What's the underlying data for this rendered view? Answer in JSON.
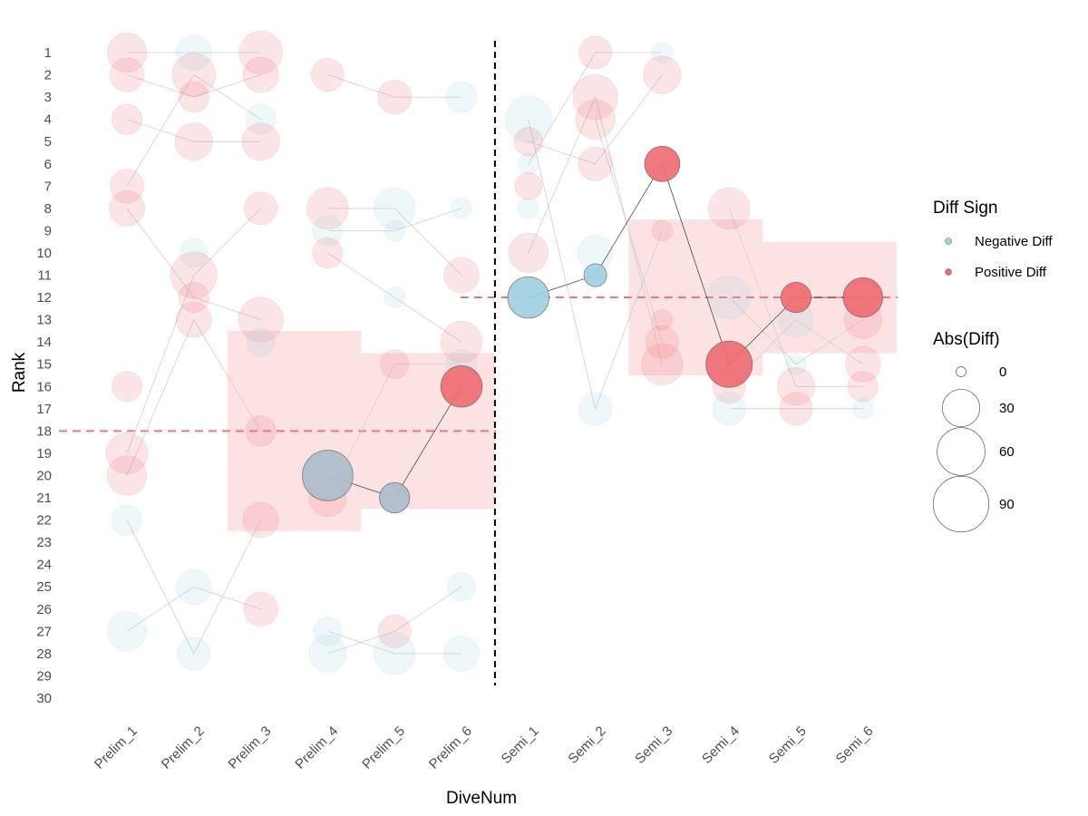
{
  "chart_data": {
    "type": "scatter",
    "xlabel": "DiveNum",
    "ylabel": "Rank",
    "categories": [
      "Prelim_1",
      "Prelim_2",
      "Prelim_3",
      "Prelim_4",
      "Prelim_5",
      "Prelim_6",
      "Semi_1",
      "Semi_2",
      "Semi_3",
      "Semi_4",
      "Semi_5",
      "Semi_6"
    ],
    "ylim": [
      30,
      1
    ],
    "y_ticks": [
      1,
      2,
      3,
      4,
      5,
      6,
      7,
      8,
      9,
      10,
      11,
      12,
      13,
      14,
      15,
      16,
      17,
      18,
      19,
      20,
      21,
      22,
      23,
      24,
      25,
      26,
      27,
      28,
      29,
      30
    ],
    "y_reversed": true,
    "grid": false,
    "colors": {
      "negative": "#9fd0df",
      "positive": "#ee6e73",
      "band": "#fde2e4",
      "reference_line": "#e07b7b",
      "divider": "#000000"
    },
    "stage_divider_after": "Prelim_6",
    "reference_lines": [
      {
        "from": "Prelim_1",
        "to": "Prelim_6",
        "rank": 18
      },
      {
        "from": "Semi_1",
        "to": "Semi_6",
        "rank": 12
      }
    ],
    "bands": [
      {
        "category": "Prelim_3",
        "ymin": 13.5,
        "ymax": 22.5
      },
      {
        "category": "Prelim_4",
        "ymin": 13.5,
        "ymax": 22.5
      },
      {
        "category": "Prelim_5",
        "ymin": 14.5,
        "ymax": 21.5
      },
      {
        "category": "Prelim_6",
        "ymin": 14.5,
        "ymax": 21.5
      },
      {
        "category": "Semi_3",
        "ymin": 8.5,
        "ymax": 15.5
      },
      {
        "category": "Semi_4",
        "ymin": 8.5,
        "ymax": 15.5
      },
      {
        "category": "Semi_5",
        "ymin": 9.5,
        "ymax": 14.5
      },
      {
        "category": "Semi_6",
        "ymin": 9.5,
        "ymax": 14.5
      }
    ],
    "highlight_path": {
      "prelim": [
        {
          "x": "Prelim_4",
          "rank": 20,
          "sign": "negative",
          "abs_diff": 70
        },
        {
          "x": "Prelim_5",
          "rank": 21,
          "sign": "negative",
          "abs_diff": 15
        },
        {
          "x": "Prelim_6",
          "rank": 16,
          "sign": "positive",
          "abs_diff": 40
        }
      ],
      "semi": [
        {
          "x": "Semi_1",
          "rank": 12,
          "sign": "negative",
          "abs_diff": 40
        },
        {
          "x": "Semi_2",
          "rank": 11,
          "sign": "negative",
          "abs_diff": 5
        },
        {
          "x": "Semi_3",
          "rank": 6,
          "sign": "positive",
          "abs_diff": 25
        },
        {
          "x": "Semi_4",
          "rank": 15,
          "sign": "positive",
          "abs_diff": 55
        },
        {
          "x": "Semi_5",
          "rank": 12,
          "sign": "positive",
          "abs_diff": 15
        },
        {
          "x": "Semi_6",
          "rank": 12,
          "sign": "positive",
          "abs_diff": 35
        }
      ]
    },
    "background_points": [
      {
        "x": "Prelim_1",
        "rank": 1,
        "sign": "positive",
        "abs_diff": 35
      },
      {
        "x": "Prelim_1",
        "rank": 2,
        "sign": "positive",
        "abs_diff": 22
      },
      {
        "x": "Prelim_1",
        "rank": 4,
        "sign": "positive",
        "abs_diff": 15
      },
      {
        "x": "Prelim_1",
        "rank": 7,
        "sign": "positive",
        "abs_diff": 22
      },
      {
        "x": "Prelim_1",
        "rank": 8,
        "sign": "positive",
        "abs_diff": 25
      },
      {
        "x": "Prelim_1",
        "rank": 16,
        "sign": "positive",
        "abs_diff": 15
      },
      {
        "x": "Prelim_1",
        "rank": 19,
        "sign": "positive",
        "abs_diff": 40
      },
      {
        "x": "Prelim_1",
        "rank": 20,
        "sign": "positive",
        "abs_diff": 35
      },
      {
        "x": "Prelim_1",
        "rank": 22,
        "sign": "negative",
        "abs_diff": 15
      },
      {
        "x": "Prelim_1",
        "rank": 27,
        "sign": "negative",
        "abs_diff": 35
      },
      {
        "x": "Prelim_2",
        "rank": 1,
        "sign": "negative",
        "abs_diff": 25
      },
      {
        "x": "Prelim_2",
        "rank": 2,
        "sign": "positive",
        "abs_diff": 45
      },
      {
        "x": "Prelim_2",
        "rank": 3,
        "sign": "positive",
        "abs_diff": 15
      },
      {
        "x": "Prelim_2",
        "rank": 5,
        "sign": "positive",
        "abs_diff": 30
      },
      {
        "x": "Prelim_2",
        "rank": 10,
        "sign": "negative",
        "abs_diff": 12
      },
      {
        "x": "Prelim_2",
        "rank": 11,
        "sign": "positive",
        "abs_diff": 55
      },
      {
        "x": "Prelim_2",
        "rank": 12,
        "sign": "positive",
        "abs_diff": 15
      },
      {
        "x": "Prelim_2",
        "rank": 13,
        "sign": "positive",
        "abs_diff": 25
      },
      {
        "x": "Prelim_2",
        "rank": 25,
        "sign": "negative",
        "abs_diff": 25
      },
      {
        "x": "Prelim_2",
        "rank": 28,
        "sign": "negative",
        "abs_diff": 20
      },
      {
        "x": "Prelim_3",
        "rank": 1,
        "sign": "positive",
        "abs_diff": 45
      },
      {
        "x": "Prelim_3",
        "rank": 2,
        "sign": "positive",
        "abs_diff": 25
      },
      {
        "x": "Prelim_3",
        "rank": 4,
        "sign": "negative",
        "abs_diff": 15
      },
      {
        "x": "Prelim_3",
        "rank": 5,
        "sign": "positive",
        "abs_diff": 30
      },
      {
        "x": "Prelim_3",
        "rank": 8,
        "sign": "positive",
        "abs_diff": 20
      },
      {
        "x": "Prelim_3",
        "rank": 13,
        "sign": "positive",
        "abs_diff": 50
      },
      {
        "x": "Prelim_3",
        "rank": 14,
        "sign": "negative",
        "abs_diff": 12
      },
      {
        "x": "Prelim_3",
        "rank": 18,
        "sign": "positive",
        "abs_diff": 15
      },
      {
        "x": "Prelim_3",
        "rank": 22,
        "sign": "positive",
        "abs_diff": 25
      },
      {
        "x": "Prelim_3",
        "rank": 26,
        "sign": "positive",
        "abs_diff": 22
      },
      {
        "x": "Prelim_4",
        "rank": 2,
        "sign": "positive",
        "abs_diff": 20
      },
      {
        "x": "Prelim_4",
        "rank": 8,
        "sign": "positive",
        "abs_diff": 40
      },
      {
        "x": "Prelim_4",
        "rank": 9,
        "sign": "negative",
        "abs_diff": 15
      },
      {
        "x": "Prelim_4",
        "rank": 10,
        "sign": "positive",
        "abs_diff": 15
      },
      {
        "x": "Prelim_4",
        "rank": 21,
        "sign": "positive",
        "abs_diff": 30
      },
      {
        "x": "Prelim_4",
        "rank": 27,
        "sign": "negative",
        "abs_diff": 12
      },
      {
        "x": "Prelim_4",
        "rank": 28,
        "sign": "negative",
        "abs_diff": 30
      },
      {
        "x": "Prelim_5",
        "rank": 3,
        "sign": "positive",
        "abs_diff": 22
      },
      {
        "x": "Prelim_5",
        "rank": 8,
        "sign": "negative",
        "abs_diff": 40
      },
      {
        "x": "Prelim_5",
        "rank": 9,
        "sign": "negative",
        "abs_diff": 3
      },
      {
        "x": "Prelim_5",
        "rank": 12,
        "sign": "negative",
        "abs_diff": 3
      },
      {
        "x": "Prelim_5",
        "rank": 15,
        "sign": "positive",
        "abs_diff": 12
      },
      {
        "x": "Prelim_5",
        "rank": 27,
        "sign": "positive",
        "abs_diff": 20
      },
      {
        "x": "Prelim_5",
        "rank": 28,
        "sign": "negative",
        "abs_diff": 40
      },
      {
        "x": "Prelim_6",
        "rank": 3,
        "sign": "negative",
        "abs_diff": 15
      },
      {
        "x": "Prelim_6",
        "rank": 8,
        "sign": "negative",
        "abs_diff": 3
      },
      {
        "x": "Prelim_6",
        "rank": 11,
        "sign": "positive",
        "abs_diff": 25
      },
      {
        "x": "Prelim_6",
        "rank": 14,
        "sign": "positive",
        "abs_diff": 40
      },
      {
        "x": "Prelim_6",
        "rank": 15,
        "sign": "negative",
        "abs_diff": 15
      },
      {
        "x": "Prelim_6",
        "rank": 25,
        "sign": "negative",
        "abs_diff": 12
      },
      {
        "x": "Prelim_6",
        "rank": 28,
        "sign": "negative",
        "abs_diff": 25
      },
      {
        "x": "Semi_1",
        "rank": 4,
        "sign": "negative",
        "abs_diff": 55
      },
      {
        "x": "Semi_1",
        "rank": 5,
        "sign": "positive",
        "abs_diff": 12
      },
      {
        "x": "Semi_1",
        "rank": 6,
        "sign": "negative",
        "abs_diff": 3
      },
      {
        "x": "Semi_1",
        "rank": 7,
        "sign": "positive",
        "abs_diff": 10
      },
      {
        "x": "Semi_1",
        "rank": 8,
        "sign": "negative",
        "abs_diff": 3
      },
      {
        "x": "Semi_1",
        "rank": 10,
        "sign": "positive",
        "abs_diff": 35
      },
      {
        "x": "Semi_2",
        "rank": 1,
        "sign": "positive",
        "abs_diff": 20
      },
      {
        "x": "Semi_2",
        "rank": 3,
        "sign": "positive",
        "abs_diff": 50
      },
      {
        "x": "Semi_2",
        "rank": 4,
        "sign": "positive",
        "abs_diff": 35
      },
      {
        "x": "Semi_2",
        "rank": 6,
        "sign": "positive",
        "abs_diff": 22
      },
      {
        "x": "Semi_2",
        "rank": 10,
        "sign": "negative",
        "abs_diff": 25
      },
      {
        "x": "Semi_2",
        "rank": 17,
        "sign": "negative",
        "abs_diff": 20
      },
      {
        "x": "Semi_3",
        "rank": 1,
        "sign": "negative",
        "abs_diff": 3
      },
      {
        "x": "Semi_3",
        "rank": 2,
        "sign": "positive",
        "abs_diff": 30
      },
      {
        "x": "Semi_3",
        "rank": 9,
        "sign": "positive",
        "abs_diff": 3
      },
      {
        "x": "Semi_3",
        "rank": 13,
        "sign": "positive",
        "abs_diff": 3
      },
      {
        "x": "Semi_3",
        "rank": 14,
        "sign": "positive",
        "abs_diff": 20
      },
      {
        "x": "Semi_3",
        "rank": 15,
        "sign": "positive",
        "abs_diff": 40
      },
      {
        "x": "Semi_4",
        "rank": 8,
        "sign": "positive",
        "abs_diff": 40
      },
      {
        "x": "Semi_4",
        "rank": 12,
        "sign": "negative",
        "abs_diff": 45
      },
      {
        "x": "Semi_4",
        "rank": 16,
        "sign": "positive",
        "abs_diff": 20
      },
      {
        "x": "Semi_4",
        "rank": 17,
        "sign": "negative",
        "abs_diff": 20
      },
      {
        "x": "Semi_5",
        "rank": 13,
        "sign": "negative",
        "abs_diff": 25
      },
      {
        "x": "Semi_5",
        "rank": 15,
        "sign": "negative",
        "abs_diff": 3
      },
      {
        "x": "Semi_5",
        "rank": 16,
        "sign": "positive",
        "abs_diff": 30
      },
      {
        "x": "Semi_5",
        "rank": 17,
        "sign": "positive",
        "abs_diff": 20
      },
      {
        "x": "Semi_6",
        "rank": 13,
        "sign": "positive",
        "abs_diff": 30
      },
      {
        "x": "Semi_6",
        "rank": 15,
        "sign": "positive",
        "abs_diff": 25
      },
      {
        "x": "Semi_6",
        "rank": 16,
        "sign": "positive",
        "abs_diff": 15
      },
      {
        "x": "Semi_6",
        "rank": 17,
        "sign": "negative",
        "abs_diff": 3
      }
    ],
    "background_lines": [
      [
        [
          "Prelim_1",
          1
        ],
        [
          "Prelim_2",
          1
        ],
        [
          "Prelim_3",
          1
        ]
      ],
      [
        [
          "Prelim_1",
          2
        ],
        [
          "Prelim_2",
          3
        ],
        [
          "Prelim_3",
          2
        ]
      ],
      [
        [
          "Prelim_1",
          4
        ],
        [
          "Prelim_2",
          5
        ],
        [
          "Prelim_3",
          5
        ]
      ],
      [
        [
          "Prelim_1",
          7
        ],
        [
          "Prelim_2",
          2
        ],
        [
          "Prelim_3",
          4
        ]
      ],
      [
        [
          "Prelim_1",
          8
        ],
        [
          "Prelim_2",
          12
        ],
        [
          "Prelim_3",
          13
        ]
      ],
      [
        [
          "Prelim_1",
          19
        ],
        [
          "Prelim_2",
          11
        ],
        [
          "Prelim_3",
          8
        ]
      ],
      [
        [
          "Prelim_1",
          20
        ],
        [
          "Prelim_2",
          13
        ],
        [
          "Prelim_3",
          18
        ]
      ],
      [
        [
          "Prelim_1",
          22
        ],
        [
          "Prelim_2",
          28
        ],
        [
          "Prelim_3",
          22
        ]
      ],
      [
        [
          "Prelim_1",
          27
        ],
        [
          "Prelim_2",
          25
        ],
        [
          "Prelim_3",
          26
        ]
      ],
      [
        [
          "Prelim_4",
          2
        ],
        [
          "Prelim_5",
          3
        ],
        [
          "Prelim_6",
          3
        ]
      ],
      [
        [
          "Prelim_4",
          8
        ],
        [
          "Prelim_5",
          8
        ],
        [
          "Prelim_6",
          11
        ]
      ],
      [
        [
          "Prelim_4",
          9
        ],
        [
          "Prelim_5",
          9
        ],
        [
          "Prelim_6",
          8
        ]
      ],
      [
        [
          "Prelim_4",
          10
        ],
        [
          "Prelim_5",
          12
        ],
        [
          "Prelim_6",
          14
        ]
      ],
      [
        [
          "Prelim_4",
          21
        ],
        [
          "Prelim_5",
          15
        ],
        [
          "Prelim_6",
          15
        ]
      ],
      [
        [
          "Prelim_4",
          27
        ],
        [
          "Prelim_5",
          28
        ],
        [
          "Prelim_6",
          28
        ]
      ],
      [
        [
          "Prelim_4",
          28
        ],
        [
          "Prelim_5",
          27
        ],
        [
          "Prelim_6",
          25
        ]
      ],
      [
        [
          "Semi_1",
          4
        ],
        [
          "Semi_2",
          17
        ],
        [
          "Semi_3",
          9
        ]
      ],
      [
        [
          "Semi_1",
          5
        ],
        [
          "Semi_2",
          6
        ],
        [
          "Semi_3",
          2
        ]
      ],
      [
        [
          "Semi_1",
          6
        ],
        [
          "Semi_2",
          1
        ],
        [
          "Semi_3",
          1
        ]
      ],
      [
        [
          "Semi_1",
          10
        ],
        [
          "Semi_2",
          3
        ],
        [
          "Semi_3",
          15
        ]
      ],
      [
        [
          "Semi_2",
          4
        ],
        [
          "Semi_3",
          14
        ]
      ],
      [
        [
          "Semi_4",
          8
        ],
        [
          "Semi_5",
          16
        ],
        [
          "Semi_6",
          16
        ]
      ],
      [
        [
          "Semi_4",
          12
        ],
        [
          "Semi_5",
          15
        ],
        [
          "Semi_6",
          13
        ]
      ],
      [
        [
          "Semi_4",
          16
        ],
        [
          "Semi_5",
          13
        ],
        [
          "Semi_6",
          15
        ]
      ],
      [
        [
          "Semi_4",
          17
        ],
        [
          "Semi_5",
          17
        ],
        [
          "Semi_6",
          17
        ]
      ]
    ]
  },
  "legend": {
    "color_title": "Diff Sign",
    "color_items": [
      {
        "label": "Negative Diff",
        "sign": "negative"
      },
      {
        "label": "Positive Diff",
        "sign": "positive"
      }
    ],
    "size_title": "Abs(Diff)",
    "size_items": [
      {
        "label": "0",
        "value": 0
      },
      {
        "label": "30",
        "value": 30
      },
      {
        "label": "60",
        "value": 60
      },
      {
        "label": "90",
        "value": 90
      }
    ]
  }
}
